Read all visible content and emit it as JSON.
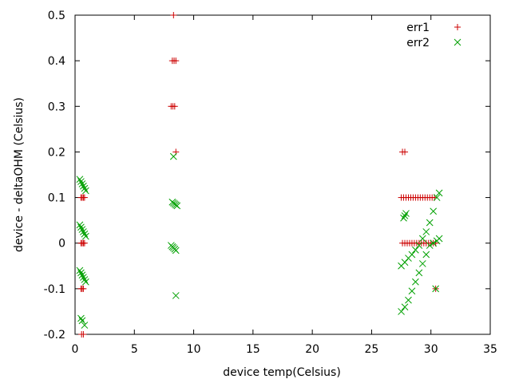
{
  "chart_data": {
    "type": "scatter",
    "xlabel": "device temp(Celsius)",
    "ylabel": "device - deltaOHM (Celsius)",
    "xlim": [
      0,
      35
    ],
    "ylim": [
      -0.2,
      0.5
    ],
    "x_ticks": [
      0,
      5,
      10,
      15,
      20,
      25,
      30,
      35
    ],
    "y_ticks": [
      -0.2,
      -0.1,
      0,
      0.1,
      0.2,
      0.3,
      0.4,
      0.5
    ],
    "x_tick_labels": [
      "0",
      "5",
      "10",
      "15",
      "20",
      "25",
      "30",
      "35"
    ],
    "y_tick_labels": [
      "-0.2",
      "-0.1",
      "0",
      "0.1",
      "0.2",
      "0.3",
      "0.4",
      "0.5"
    ],
    "grid": false,
    "legend_position": "top-right",
    "series": [
      {
        "name": "err1",
        "marker": "plus",
        "color": "#cc0000",
        "points": [
          [
            0.5,
            0.1
          ],
          [
            0.6,
            0.1
          ],
          [
            0.7,
            0.1
          ],
          [
            0.8,
            0.1
          ],
          [
            0.5,
            0.0
          ],
          [
            0.6,
            0.0
          ],
          [
            0.7,
            0.0
          ],
          [
            0.8,
            0.0
          ],
          [
            0.5,
            -0.1
          ],
          [
            0.6,
            -0.1
          ],
          [
            0.7,
            -0.1
          ],
          [
            0.55,
            -0.2
          ],
          [
            0.7,
            -0.2
          ],
          [
            8.3,
            0.5
          ],
          [
            8.2,
            0.4
          ],
          [
            8.35,
            0.4
          ],
          [
            8.5,
            0.4
          ],
          [
            8.1,
            0.3
          ],
          [
            8.25,
            0.3
          ],
          [
            8.4,
            0.3
          ],
          [
            8.5,
            0.2
          ],
          [
            27.6,
            0.2
          ],
          [
            27.8,
            0.2
          ],
          [
            27.5,
            0.1
          ],
          [
            27.7,
            0.1
          ],
          [
            27.9,
            0.1
          ],
          [
            28.1,
            0.1
          ],
          [
            28.3,
            0.1
          ],
          [
            28.5,
            0.1
          ],
          [
            28.7,
            0.1
          ],
          [
            28.9,
            0.1
          ],
          [
            29.1,
            0.1
          ],
          [
            29.3,
            0.1
          ],
          [
            29.5,
            0.1
          ],
          [
            29.7,
            0.1
          ],
          [
            29.9,
            0.1
          ],
          [
            30.1,
            0.1
          ],
          [
            30.3,
            0.1
          ],
          [
            27.6,
            0.0
          ],
          [
            27.8,
            0.0
          ],
          [
            28.0,
            0.0
          ],
          [
            28.2,
            0.0
          ],
          [
            28.4,
            0.0
          ],
          [
            28.6,
            0.0
          ],
          [
            28.8,
            0.0
          ],
          [
            29.0,
            0.0
          ],
          [
            29.2,
            0.0
          ],
          [
            29.4,
            0.0
          ],
          [
            29.6,
            0.0
          ],
          [
            29.8,
            0.0
          ],
          [
            30.0,
            0.0
          ],
          [
            30.2,
            0.0
          ],
          [
            30.4,
            0.0
          ],
          [
            30.4,
            -0.1
          ]
        ]
      },
      {
        "name": "err2",
        "marker": "cross",
        "color": "#00a000",
        "points": [
          [
            0.4,
            0.14
          ],
          [
            0.5,
            0.135
          ],
          [
            0.6,
            0.13
          ],
          [
            0.7,
            0.125
          ],
          [
            0.8,
            0.12
          ],
          [
            0.9,
            0.115
          ],
          [
            0.4,
            0.04
          ],
          [
            0.5,
            0.035
          ],
          [
            0.6,
            0.03
          ],
          [
            0.7,
            0.025
          ],
          [
            0.8,
            0.02
          ],
          [
            0.9,
            0.015
          ],
          [
            0.4,
            -0.06
          ],
          [
            0.5,
            -0.065
          ],
          [
            0.6,
            -0.07
          ],
          [
            0.7,
            -0.075
          ],
          [
            0.8,
            -0.08
          ],
          [
            0.9,
            -0.085
          ],
          [
            0.5,
            -0.165
          ],
          [
            0.6,
            -0.17
          ],
          [
            0.8,
            -0.18
          ],
          [
            8.3,
            0.19
          ],
          [
            8.2,
            0.09
          ],
          [
            8.3,
            0.088
          ],
          [
            8.4,
            0.086
          ],
          [
            8.5,
            0.084
          ],
          [
            8.6,
            0.082
          ],
          [
            8.1,
            -0.005
          ],
          [
            8.2,
            -0.008
          ],
          [
            8.3,
            -0.01
          ],
          [
            8.4,
            -0.013
          ],
          [
            8.5,
            -0.016
          ],
          [
            8.5,
            -0.115
          ],
          [
            27.5,
            -0.05
          ],
          [
            27.8,
            -0.042
          ],
          [
            28.1,
            -0.033
          ],
          [
            28.4,
            -0.025
          ],
          [
            28.7,
            -0.015
          ],
          [
            29.0,
            -0.005
          ],
          [
            29.3,
            0.01
          ],
          [
            29.6,
            0.025
          ],
          [
            29.9,
            0.045
          ],
          [
            30.2,
            0.07
          ],
          [
            30.5,
            0.1
          ],
          [
            30.7,
            0.11
          ],
          [
            27.7,
            0.055
          ],
          [
            27.8,
            0.06
          ],
          [
            27.9,
            0.065
          ],
          [
            27.5,
            -0.15
          ],
          [
            27.8,
            -0.14
          ],
          [
            28.1,
            -0.125
          ],
          [
            28.4,
            -0.105
          ],
          [
            28.7,
            -0.085
          ],
          [
            29.0,
            -0.065
          ],
          [
            29.3,
            -0.045
          ],
          [
            29.6,
            -0.025
          ],
          [
            29.9,
            -0.005
          ],
          [
            30.2,
            0.0
          ],
          [
            30.5,
            0.005
          ],
          [
            30.7,
            0.01
          ],
          [
            30.4,
            -0.1
          ]
        ]
      }
    ]
  }
}
